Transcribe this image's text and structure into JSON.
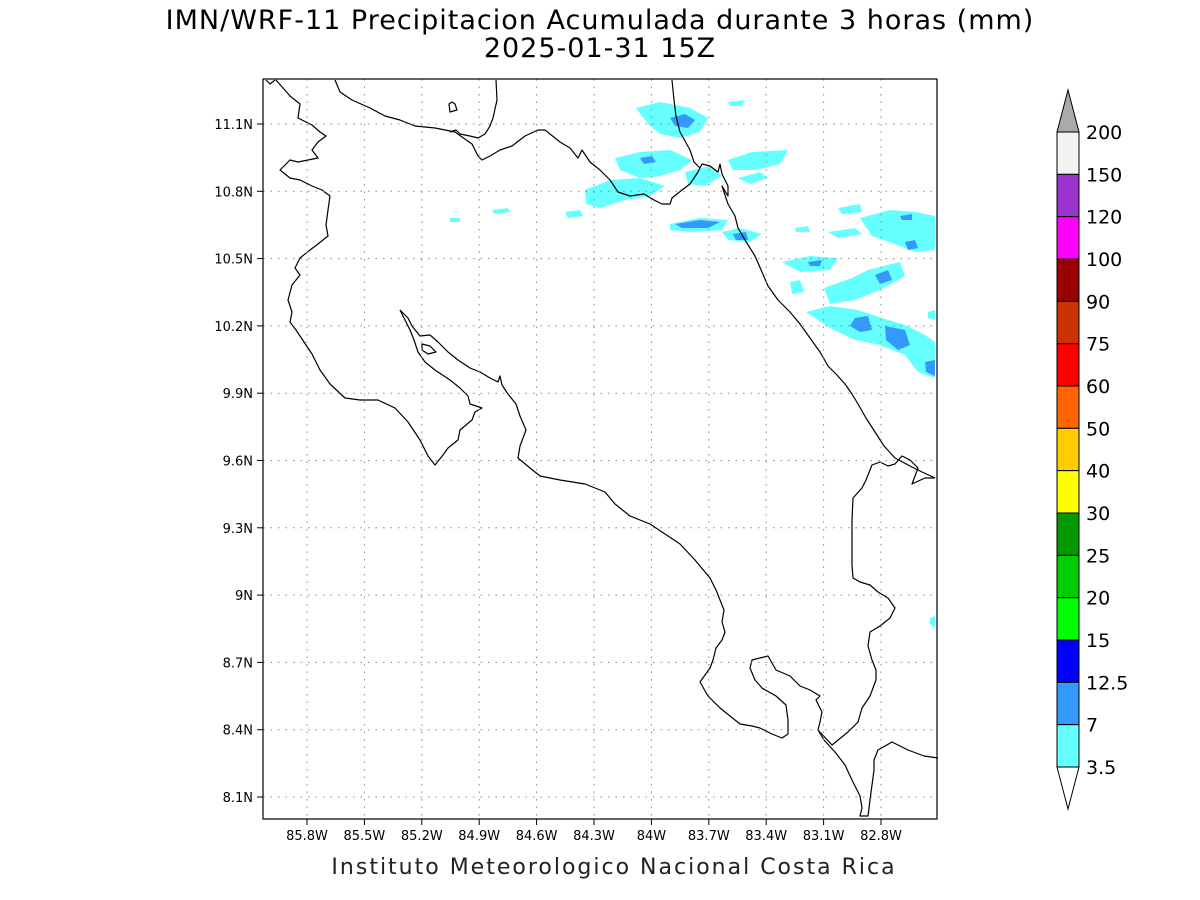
{
  "map": {
    "title_line1": "IMN/WRF-11 Precipitacion Acumulada durante 3 horas (mm)",
    "title_line2": "2025-01-31 15Z",
    "footer": "Instituto Meteorologico Nacional Costa Rica",
    "lon_ticks": [
      "85.8W",
      "85.5W",
      "85.2W",
      "84.9W",
      "84.6W",
      "84.3W",
      "84W",
      "83.7W",
      "83.4W",
      "83.1W",
      "82.8W"
    ],
    "lat_ticks": [
      "11.1N",
      "10.8N",
      "10.5N",
      "10.2N",
      "9.9N",
      "9.6N",
      "9.3N",
      "9N",
      "8.7N",
      "8.4N",
      "8.1N"
    ],
    "grid": true
  },
  "legend": {
    "labels": [
      "200",
      "150",
      "120",
      "100",
      "90",
      "75",
      "60",
      "50",
      "40",
      "30",
      "25",
      "20",
      "15",
      "12.5",
      "7",
      "3.5"
    ],
    "colors": [
      "#f2f2f2",
      "#9933cc",
      "#ff00ff",
      "#990000",
      "#cc3300",
      "#ff0000",
      "#ff6600",
      "#ffcc00",
      "#ffff00",
      "#009900",
      "#00cc00",
      "#00ff00",
      "#0000ff",
      "#3399ff",
      "#66ffff"
    ],
    "over_color": "#aaaaaa",
    "under_color": "#ffffff"
  }
}
